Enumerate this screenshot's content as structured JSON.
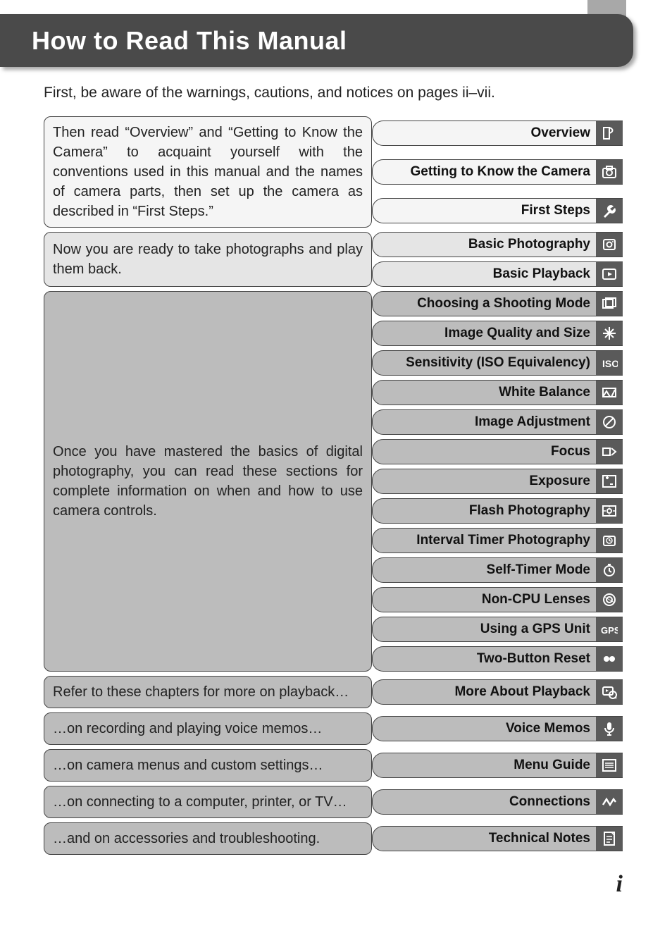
{
  "title": "How to Read This Manual",
  "intro": "First, be aware of the warnings, cautions, and notices on pages ii–vii.",
  "page_number": "i",
  "colors": {
    "banner_bg": "#4a4a4a",
    "banner_text": "#ffffff",
    "icon_bg": "#5a5a5a",
    "shade_light": "#f5f5f5",
    "shade_mid": "#e5e5e5",
    "shade_dark": "#bcbcbc",
    "border": "#444444"
  },
  "sections": [
    {
      "text": "Then read “Overview” and “Getting to Know the Camera” to acquaint yourself with the conventions used in this manual and the names of camera parts, then set up the camera as described in “First Steps.”",
      "shade": "shade-light",
      "chapters": [
        {
          "label": "Overview",
          "shade": "shade-light",
          "icon": "overview-icon"
        },
        {
          "label": "Getting to Know the Camera",
          "shade": "shade-light",
          "icon": "camera-icon"
        },
        {
          "label": "First Steps",
          "shade": "shade-light",
          "icon": "wrench-icon"
        }
      ]
    },
    {
      "text": "Now you are ready to take photographs and play them back.",
      "shade": "shade-mid",
      "chapters": [
        {
          "label": "Basic Photography",
          "shade": "shade-mid",
          "icon": "photo-icon"
        },
        {
          "label": "Basic Playback",
          "shade": "shade-mid",
          "icon": "play-icon"
        }
      ]
    },
    {
      "text": "Once you have mastered the basics of digital photography, you can read these sections for complete information on when and how to use camera controls.",
      "shade": "shade-dark",
      "chapters": [
        {
          "label": "Choosing a Shooting Mode",
          "shade": "shade-dark",
          "icon": "mode-icon"
        },
        {
          "label": "Image Quality and Size",
          "shade": "shade-dark",
          "icon": "quality-icon"
        },
        {
          "label": "Sensitivity (ISO Equivalency)",
          "shade": "shade-dark",
          "icon": "iso-icon"
        },
        {
          "label": "White Balance",
          "shade": "shade-dark",
          "icon": "wb-icon"
        },
        {
          "label": "Image Adjustment",
          "shade": "shade-dark",
          "icon": "adjust-icon"
        },
        {
          "label": "Focus",
          "shade": "shade-dark",
          "icon": "focus-icon"
        },
        {
          "label": "Exposure",
          "shade": "shade-dark",
          "icon": "exposure-icon"
        },
        {
          "label": "Flash Photography",
          "shade": "shade-dark",
          "icon": "flash-icon"
        },
        {
          "label": "Interval Timer Photography",
          "shade": "shade-dark",
          "icon": "interval-icon"
        },
        {
          "label": "Self-Timer Mode",
          "shade": "shade-dark",
          "icon": "timer-icon"
        },
        {
          "label": "Non-CPU Lenses",
          "shade": "shade-dark",
          "icon": "lens-icon"
        },
        {
          "label": "Using a GPS Unit",
          "shade": "shade-dark",
          "icon": "gps-icon"
        },
        {
          "label": "Two-Button Reset",
          "shade": "shade-dark",
          "icon": "reset-icon"
        }
      ]
    },
    {
      "text": "Refer to these chapters for more on playback…",
      "shade": "shade-dark",
      "chapters": [
        {
          "label": "More About Playback",
          "shade": "shade-dark",
          "icon": "playback-icon"
        }
      ]
    },
    {
      "text": "…on recording and playing voice memos…",
      "shade": "shade-dark",
      "chapters": [
        {
          "label": "Voice Memos",
          "shade": "shade-dark",
          "icon": "voice-icon"
        }
      ]
    },
    {
      "text": "…on camera menus and custom settings…",
      "shade": "shade-dark",
      "chapters": [
        {
          "label": "Menu Guide",
          "shade": "shade-dark",
          "icon": "menu-icon"
        }
      ]
    },
    {
      "text": "…on connecting to a computer, printer, or TV…",
      "shade": "shade-dark",
      "chapters": [
        {
          "label": "Connections",
          "shade": "shade-dark",
          "icon": "connection-icon"
        }
      ]
    },
    {
      "text": "…and on accessories and troubleshooting.",
      "shade": "shade-dark",
      "chapters": [
        {
          "label": "Technical Notes",
          "shade": "shade-dark",
          "icon": "notes-icon"
        }
      ]
    }
  ]
}
